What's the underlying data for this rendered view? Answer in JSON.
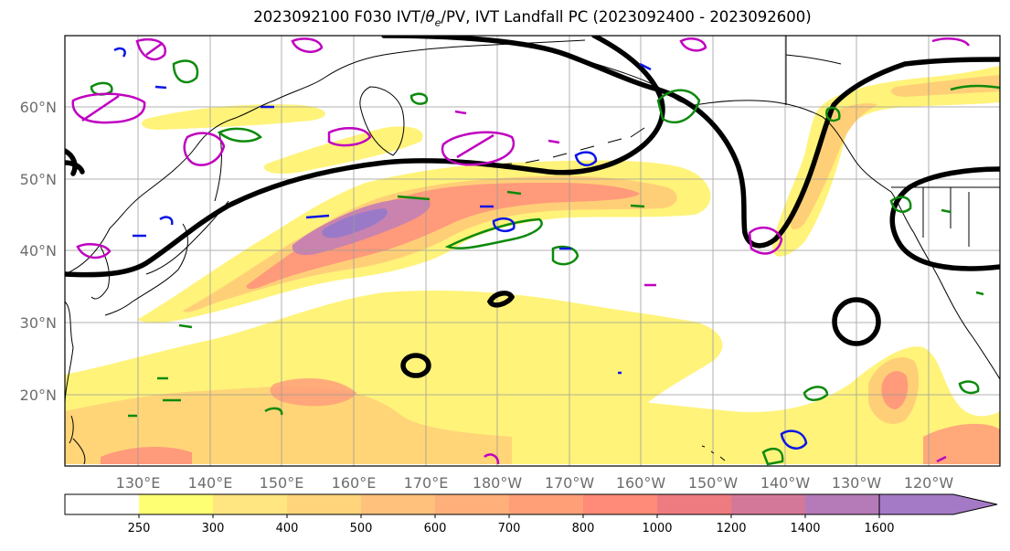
{
  "title_parts": {
    "prefix": "2023092100 F030 IVT/",
    "theta": "θ",
    "theta_sub": "e",
    "suffix": "/PV, IVT Landfall PC (2023092400 - 2023092600)"
  },
  "lat_labels": [
    "60°N",
    "50°N",
    "40°N",
    "30°N",
    "20°N"
  ],
  "lon_labels": [
    "130°E",
    "140°E",
    "150°E",
    "160°E",
    "170°E",
    "180°W",
    "170°W",
    "160°W",
    "150°W",
    "140°W",
    "130°W",
    "120°W"
  ],
  "colorbar": {
    "ticks": [
      "250",
      "300",
      "400",
      "500",
      "600",
      "700",
      "800",
      "1000",
      "1200",
      "1400",
      "1600"
    ],
    "colors": [
      "#ffffff",
      "#ffff73",
      "#ffe680",
      "#ffd47a",
      "#ffc17c",
      "#ffb07a",
      "#ff9f78",
      "#ff8b78",
      "#ee7b80",
      "#d4789a",
      "#b57ab8",
      "#a47ac6"
    ]
  },
  "colors": {
    "ivt_light": "#fff37a",
    "ivt_mid": "#ffcf78",
    "ivt_strong": "#ff9a7a",
    "ivt_core": "#c983ae",
    "ivt_max": "#9a7ac8",
    "theta_e_contour": "#000000",
    "pv_green": "#0c8a0c",
    "pv_blue": "#0a15e6",
    "pv_magenta": "#c000c0",
    "coastline": "#000000"
  }
}
